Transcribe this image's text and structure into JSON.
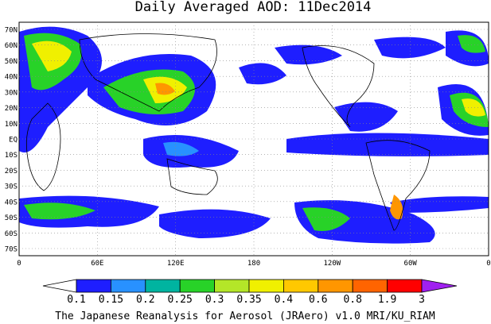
{
  "title": "Daily Averaged AOD: 11Dec2014",
  "lat_labels": [
    "70N",
    "60N",
    "50N",
    "40N",
    "30N",
    "20N",
    "10N",
    "EQ",
    "10S",
    "20S",
    "30S",
    "40S",
    "50S",
    "60S",
    "70S"
  ],
  "lon_labels": [
    "0",
    "60E",
    "120E",
    "180",
    "120W",
    "60W",
    "0"
  ],
  "colorbar": {
    "labels": [
      "0.1",
      "0.15",
      "0.2",
      "0.25",
      "0.3",
      "0.35",
      "0.4",
      "0.6",
      "0.8",
      "1.9",
      "3"
    ],
    "colors": [
      "#ffffff",
      "#1e1eff",
      "#2891ff",
      "#00b4a0",
      "#28d228",
      "#b4e628",
      "#f0f000",
      "#ffc800",
      "#ff9600",
      "#ff6400",
      "#ff0000",
      "#a020f0"
    ]
  },
  "footer": "The Japanese Reanalysis for Aerosol (JRAero) v1.0 MRI/KU_RIAM"
}
